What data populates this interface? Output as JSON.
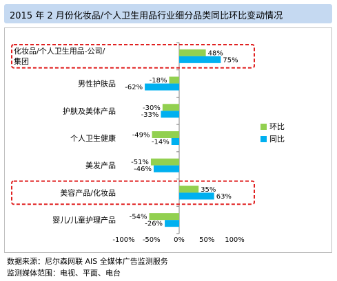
{
  "header": {
    "title": "2015 年 2 月份化妆品/个人卫生用品行业细分品类同比环比变动情况"
  },
  "chart_data": {
    "type": "bar",
    "orientation": "horizontal",
    "categories": [
      [
        "化妆品/个人卫生用品-公司/",
        "集团"
      ],
      [
        "男性护肤品"
      ],
      [
        "护肤及美体产品"
      ],
      [
        "个人卫生健康"
      ],
      [
        "美发产品"
      ],
      [
        "美容产品/化妆品"
      ],
      [
        "婴儿/儿童护理产品"
      ]
    ],
    "series": [
      {
        "name": "环比",
        "color": "#92d050",
        "values": [
          48,
          -18,
          -30,
          -49,
          -51,
          35,
          -54
        ],
        "labels": [
          "48%",
          "-18%",
          "-30%",
          "-49%",
          "-51%",
          "35%",
          "-54%"
        ]
      },
      {
        "name": "同比",
        "color": "#00b0f0",
        "values": [
          75,
          -62,
          -33,
          -14,
          -46,
          63,
          -26
        ],
        "labels": [
          "75%",
          "-62%",
          "-33%",
          "-14%",
          "-46%",
          "63%",
          "-26%"
        ]
      }
    ],
    "xlim": [
      -100,
      100
    ],
    "xticks": [
      -100,
      -50,
      0,
      50,
      100
    ],
    "xtick_labels": [
      "-100%",
      "-50%",
      "0%",
      "50%",
      "100%"
    ],
    "highlighted_categories": [
      0,
      5
    ],
    "highlight_color": "#e02020",
    "legend_position": "right",
    "grid": false
  },
  "footer": {
    "source": "数据来源：尼尔森网联 AIS 全媒体广告监测服务",
    "scope": "监测媒体范围：电视、平面、电台"
  }
}
